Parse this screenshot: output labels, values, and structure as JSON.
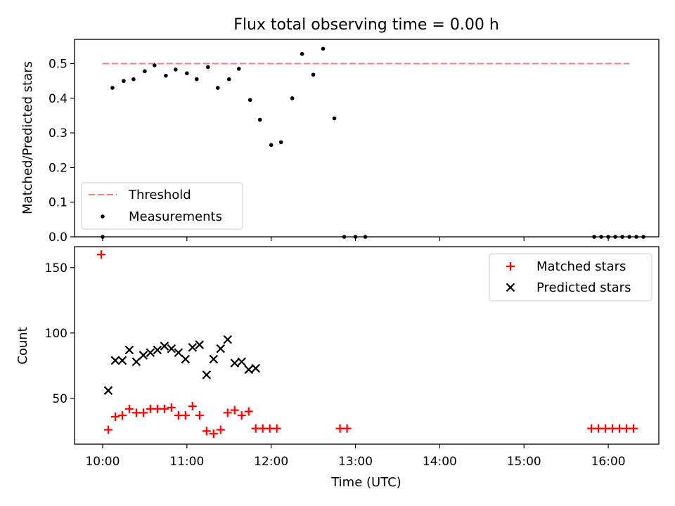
{
  "title": "Flux total observing time = 0.00 h",
  "colors": {
    "threshold": "#f08080",
    "measurement": "#000000",
    "matched": "#ff0000",
    "predicted": "#000000"
  },
  "chart_data": [
    {
      "type": "scatter",
      "title": "Flux total observing time = 0.00 h",
      "ylabel": "Matched/Predicted stars",
      "xlabel": "",
      "xlim": [
        "09:40",
        "16:36"
      ],
      "ylim": [
        0,
        0.57
      ],
      "yticks": [
        0,
        0.1,
        0.2,
        0.3,
        0.4,
        0.5
      ],
      "ytick_labels": [
        "0.0",
        "0.1",
        "0.2",
        "0.3",
        "0.4",
        "0.5"
      ],
      "grid": false,
      "legend_position": "lower-left",
      "threshold": {
        "name": "Threshold",
        "value": 0.5,
        "x_start": "10:00",
        "x_end": "16:15"
      },
      "series": [
        {
          "name": "Measurements",
          "marker": "dot",
          "x": [
            "10:00",
            "10:07",
            "10:15",
            "10:22",
            "10:30",
            "10:37",
            "10:45",
            "10:52",
            "11:00",
            "11:07",
            "11:15",
            "11:22",
            "11:30",
            "11:37",
            "11:45",
            "11:52",
            "12:00",
            "12:07",
            "12:15",
            "12:22",
            "12:30",
            "12:37",
            "12:45",
            "12:52",
            "13:00",
            "13:07",
            "15:50",
            "15:55",
            "16:00",
            "16:05",
            "16:10",
            "16:15",
            "16:20",
            "16:25"
          ],
          "values": [
            0.0,
            0.43,
            0.45,
            0.455,
            0.478,
            0.495,
            0.465,
            0.483,
            0.472,
            0.455,
            0.49,
            0.43,
            0.455,
            0.485,
            0.395,
            0.338,
            0.265,
            0.273,
            0.4,
            0.528,
            0.468,
            0.543,
            0.342,
            0.0,
            0.0,
            0.0,
            0.0,
            0.0,
            0.0,
            0.0,
            0.0,
            0.0,
            0.0,
            0.0
          ]
        }
      ]
    },
    {
      "type": "scatter",
      "xlabel": "Time (UTC)",
      "ylabel": "Count",
      "xlim": [
        "09:40",
        "16:36"
      ],
      "ylim": [
        15,
        166
      ],
      "yticks": [
        50,
        100,
        150
      ],
      "xticks": [
        "10:00",
        "11:00",
        "12:00",
        "13:00",
        "14:00",
        "15:00",
        "16:00"
      ],
      "grid": false,
      "legend_position": "top-right",
      "series": [
        {
          "name": "Matched stars",
          "marker": "plus",
          "x": [
            "09:59",
            "10:04",
            "10:09",
            "10:14",
            "10:19",
            "10:24",
            "10:29",
            "10:34",
            "10:39",
            "10:44",
            "10:49",
            "10:54",
            "10:59",
            "11:04",
            "11:09",
            "11:14",
            "11:19",
            "11:24",
            "11:29",
            "11:34",
            "11:39",
            "11:44",
            "11:49",
            "11:54",
            "11:59",
            "12:04",
            "12:49",
            "12:54",
            "15:48",
            "15:53",
            "15:58",
            "16:03",
            "16:08",
            "16:13",
            "16:18"
          ],
          "values": [
            160,
            26,
            36,
            37,
            42,
            39,
            39,
            42,
            42,
            42,
            43,
            37,
            37,
            44,
            37,
            25,
            23,
            26,
            39,
            41,
            37,
            40,
            27,
            27,
            27,
            27,
            27,
            27,
            27,
            27,
            27,
            27,
            27,
            27,
            27
          ]
        },
        {
          "name": "Predicted stars",
          "marker": "x",
          "x": [
            "10:04",
            "10:09",
            "10:14",
            "10:19",
            "10:24",
            "10:29",
            "10:34",
            "10:39",
            "10:44",
            "10:49",
            "10:54",
            "10:59",
            "11:04",
            "11:09",
            "11:14",
            "11:19",
            "11:24",
            "11:29",
            "11:34",
            "11:39",
            "11:44",
            "11:49"
          ],
          "values": [
            56,
            79,
            79,
            87,
            78,
            83,
            85,
            87,
            90,
            88,
            85,
            80,
            89,
            91,
            68,
            80,
            88,
            95,
            77,
            78,
            72,
            73
          ]
        }
      ]
    }
  ]
}
